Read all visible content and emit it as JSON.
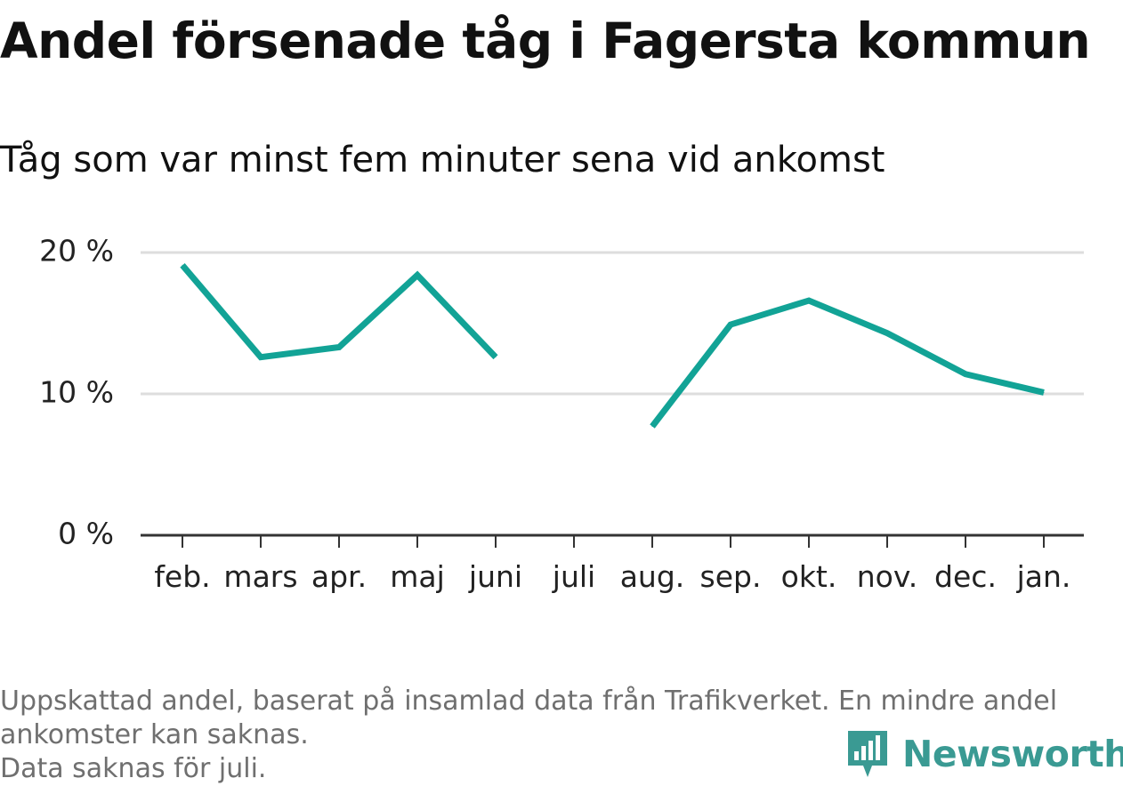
{
  "title": "Andel försenade tåg i Fagersta kommun",
  "subtitle": "Tåg som var minst fem minuter sena vid ankomst",
  "footer": {
    "line1": "Uppskattad andel, baserat på insamlad data från Trafikverket. En mindre andel",
    "line2": "ankomster kan saknas.",
    "line3": "Data saknas för juli."
  },
  "brand": {
    "name": "Newsworthy",
    "icon": "newsworthy-logo-icon",
    "color": "#3a9a93"
  },
  "colors": {
    "line": "#12a396",
    "grid": "#dddddd",
    "axis": "#333333"
  },
  "chart_data": {
    "type": "line",
    "categories": [
      "feb.",
      "mars",
      "apr.",
      "maj",
      "juni",
      "juli",
      "aug.",
      "sep.",
      "okt.",
      "nov.",
      "dec.",
      "jan."
    ],
    "series": [
      {
        "values": [
          19.1,
          12.6,
          13.3,
          18.4,
          12.6,
          null,
          7.7,
          14.9,
          16.6,
          14.3,
          11.4,
          10.1
        ]
      }
    ],
    "ylim": [
      0,
      20
    ],
    "yticks": [
      0,
      10,
      20
    ],
    "ytick_labels": [
      "0 %",
      "10 %",
      "20 %"
    ],
    "xlabel": "",
    "ylabel": "",
    "grid": true
  }
}
